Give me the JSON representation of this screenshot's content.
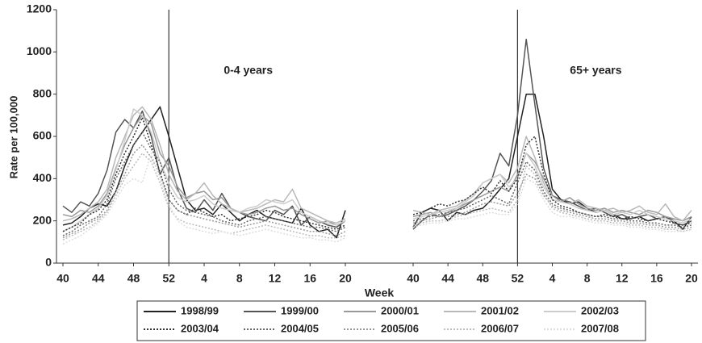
{
  "chart_data": {
    "type": "line",
    "ylabel": "Rate per 100,000",
    "xlabel": "Week",
    "ylim": [
      0,
      1200
    ],
    "yticks": [
      0,
      200,
      400,
      600,
      800,
      1000,
      1200
    ],
    "categories": [
      40,
      null,
      null,
      null,
      44,
      null,
      null,
      null,
      48,
      null,
      null,
      null,
      52,
      null,
      null,
      null,
      4,
      null,
      null,
      null,
      8,
      null,
      null,
      null,
      12,
      null,
      null,
      null,
      16,
      null,
      null,
      null,
      20
    ],
    "panels": [
      {
        "label": "0-4 years"
      },
      {
        "label": "65+ years"
      }
    ],
    "legend": "bottom",
    "series": [
      {
        "name": "1998/99",
        "color": "#222222",
        "line_style": "solid",
        "values": [
          [
            180,
            190,
            220,
            260,
            280,
            270,
            340,
            460,
            560,
            620,
            680,
            740,
            600,
            450,
            300,
            250,
            260,
            230,
            280,
            240,
            200,
            230,
            250,
            220,
            210,
            200,
            190,
            260,
            180,
            150,
            160,
            120,
            250
          ],
          [
            170,
            240,
            260,
            250,
            200,
            240,
            230,
            250,
            260,
            300,
            350,
            400,
            600,
            800,
            800,
            600,
            350,
            300,
            280,
            290,
            260,
            240,
            250,
            230,
            210,
            210,
            220,
            200,
            210,
            220,
            200,
            160,
            220
          ]
        ]
      },
      {
        "name": "1999/00",
        "color": "#555555",
        "line_style": "solid",
        "values": [
          [
            270,
            240,
            290,
            270,
            330,
            440,
            620,
            680,
            640,
            720,
            600,
            420,
            500,
            350,
            260,
            240,
            300,
            250,
            330,
            260,
            240,
            220,
            210,
            200,
            250,
            230,
            270,
            180,
            220,
            200,
            180,
            170,
            200
          ],
          [
            160,
            200,
            230,
            220,
            230,
            250,
            270,
            300,
            340,
            390,
            520,
            460,
            700,
            1060,
            750,
            450,
            320,
            300,
            290,
            270,
            250,
            260,
            240,
            220,
            230,
            210,
            220,
            230,
            210,
            220,
            190,
            180,
            200
          ]
        ]
      },
      {
        "name": "2000/01",
        "color": "#999999",
        "line_style": "solid",
        "values": [
          [
            230,
            220,
            250,
            240,
            270,
            330,
            450,
            560,
            640,
            700,
            660,
            520,
            460,
            360,
            310,
            330,
            340,
            300,
            310,
            260,
            240,
            230,
            240,
            260,
            270,
            250,
            260,
            230,
            210,
            190,
            200,
            180,
            200
          ],
          [
            220,
            230,
            240,
            220,
            240,
            260,
            280,
            300,
            320,
            340,
            360,
            340,
            420,
            520,
            480,
            400,
            320,
            290,
            310,
            280,
            260,
            250,
            260,
            240,
            250,
            240,
            230,
            250,
            240,
            220,
            210,
            200,
            220
          ]
        ]
      },
      {
        "name": "2001/02",
        "color": "#b8b8b8",
        "line_style": "solid",
        "values": [
          [
            200,
            210,
            230,
            260,
            290,
            350,
            500,
            600,
            700,
            740,
            680,
            560,
            420,
            340,
            300,
            330,
            380,
            320,
            280,
            260,
            240,
            250,
            260,
            280,
            300,
            290,
            350,
            260,
            240,
            220,
            200,
            190,
            210
          ],
          [
            250,
            240,
            230,
            250,
            260,
            270,
            300,
            330,
            380,
            400,
            420,
            380,
            450,
            600,
            500,
            380,
            300,
            290,
            280,
            300,
            270,
            260,
            250,
            260,
            240,
            250,
            270,
            240,
            230,
            280,
            220,
            200,
            250
          ]
        ]
      },
      {
        "name": "2002/03",
        "color": "#cccccc",
        "line_style": "solid",
        "values": [
          [
            150,
            170,
            200,
            230,
            260,
            320,
            440,
            580,
            730,
            700,
            620,
            480,
            380,
            310,
            290,
            300,
            320,
            280,
            260,
            250,
            240,
            260,
            270,
            300,
            290,
            280,
            300,
            240,
            220,
            200,
            190,
            180,
            200
          ],
          [
            210,
            220,
            230,
            240,
            250,
            260,
            290,
            320,
            380,
            400,
            420,
            360,
            400,
            520,
            460,
            360,
            300,
            290,
            280,
            260,
            250,
            240,
            250,
            230,
            240,
            230,
            250,
            230,
            220,
            210,
            200,
            190,
            210
          ]
        ]
      },
      {
        "name": "2003/04",
        "color": "#333333",
        "line_style": "dotted",
        "values": [
          [
            150,
            170,
            190,
            230,
            250,
            300,
            420,
            520,
            600,
            690,
            560,
            430,
            300,
            250,
            230,
            260,
            240,
            220,
            230,
            200,
            210,
            220,
            230,
            250,
            240,
            220,
            210,
            200,
            190,
            180,
            170,
            160,
            180
          ],
          [
            230,
            240,
            260,
            280,
            270,
            290,
            300,
            330,
            360,
            330,
            390,
            340,
            400,
            560,
            600,
            420,
            300,
            270,
            260,
            240,
            230,
            220,
            230,
            220,
            210,
            220,
            210,
            200,
            210,
            200,
            190,
            180,
            190
          ]
        ]
      },
      {
        "name": "2004/05",
        "color": "#666666",
        "line_style": "dotted",
        "values": [
          [
            130,
            150,
            180,
            200,
            220,
            280,
            400,
            480,
            560,
            620,
            540,
            480,
            350,
            280,
            250,
            240,
            230,
            220,
            200,
            190,
            180,
            200,
            210,
            220,
            210,
            200,
            190,
            180,
            170,
            170,
            160,
            150,
            170
          ],
          [
            200,
            210,
            220,
            230,
            240,
            250,
            260,
            280,
            300,
            320,
            300,
            280,
            380,
            480,
            440,
            340,
            280,
            260,
            250,
            240,
            230,
            220,
            220,
            210,
            210,
            200,
            200,
            190,
            190,
            180,
            180,
            170,
            180
          ]
        ]
      },
      {
        "name": "2005/06",
        "color": "#999999",
        "line_style": "dotted",
        "values": [
          [
            120,
            140,
            160,
            190,
            210,
            250,
            340,
            420,
            520,
            560,
            500,
            420,
            300,
            250,
            230,
            220,
            210,
            200,
            190,
            180,
            170,
            180,
            190,
            200,
            190,
            180,
            170,
            160,
            150,
            150,
            140,
            130,
            150
          ],
          [
            190,
            200,
            210,
            220,
            220,
            230,
            240,
            260,
            280,
            290,
            280,
            270,
            330,
            420,
            400,
            320,
            270,
            250,
            240,
            230,
            220,
            210,
            210,
            200,
            200,
            190,
            190,
            180,
            180,
            170,
            170,
            160,
            170
          ]
        ]
      },
      {
        "name": "2006/07",
        "color": "#bbbbbb",
        "line_style": "dotted",
        "values": [
          [
            110,
            130,
            150,
            170,
            200,
            240,
            320,
            400,
            460,
            520,
            480,
            380,
            260,
            210,
            190,
            180,
            170,
            160,
            150,
            140,
            150,
            160,
            170,
            180,
            170,
            160,
            150,
            140,
            130,
            130,
            120,
            120,
            130
          ],
          [
            180,
            190,
            200,
            200,
            210,
            220,
            230,
            240,
            250,
            260,
            250,
            240,
            300,
            460,
            420,
            330,
            260,
            240,
            230,
            220,
            210,
            200,
            200,
            190,
            190,
            180,
            180,
            170,
            170,
            160,
            160,
            150,
            160
          ]
        ]
      },
      {
        "name": "2007/08",
        "color": "#dddddd",
        "line_style": "dotted",
        "values": [
          [
            90,
            110,
            130,
            160,
            190,
            230,
            300,
            370,
            400,
            380,
            520,
            400,
            280,
            200,
            170,
            160,
            150,
            140,
            150,
            140,
            130,
            140,
            150,
            160,
            150,
            140,
            130,
            120,
            120,
            110,
            110,
            100,
            120
          ],
          [
            170,
            180,
            190,
            190,
            200,
            210,
            210,
            220,
            230,
            240,
            230,
            230,
            280,
            400,
            380,
            300,
            240,
            220,
            220,
            210,
            200,
            190,
            190,
            180,
            180,
            170,
            170,
            160,
            160,
            150,
            150,
            150,
            160
          ]
        ]
      }
    ]
  }
}
